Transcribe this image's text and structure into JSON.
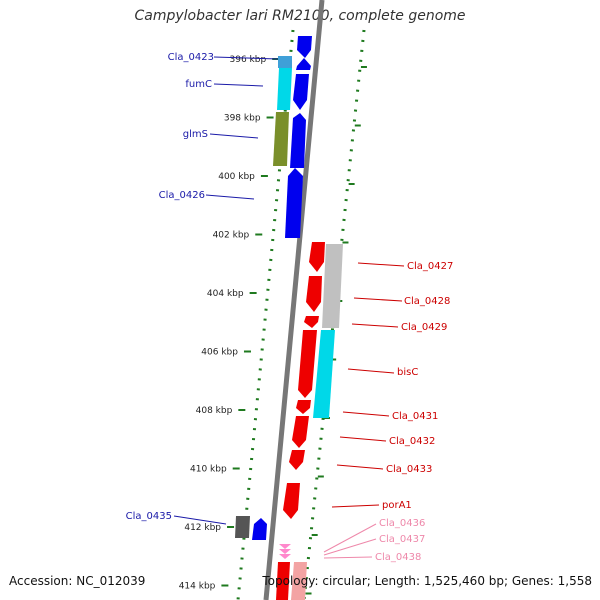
{
  "title": "Campylobacter lari RM2100, complete genome",
  "footer": {
    "accession": "Accession: NC_012039",
    "summary": "Topology: circular; Length: 1,525,460 bp; Genes: 1,558"
  },
  "colors": {
    "forward_gene": "#0000ee",
    "reverse_gene": "#ee0000",
    "forward_label": "#1a1aa8",
    "reverse_label": "#cc0000",
    "rna_label": "#ee88aa",
    "backbone": "#777777",
    "ticks": "#1f7a1f",
    "cds_cyan": "#00d8e8",
    "cds_olive": "#7a8f2a",
    "cds_gray": "#c0c0c0",
    "cds_darkgray": "#555555"
  },
  "scale": {
    "unit": "kbp",
    "ticks": [
      "396 kbp",
      "398 kbp",
      "400 kbp",
      "402 kbp",
      "404 kbp",
      "406 kbp",
      "408 kbp",
      "410 kbp",
      "412 kbp",
      "414 kbp"
    ]
  },
  "forward_genes": [
    {
      "name": "Cla_0423",
      "label": "Cla_0423"
    },
    {
      "name": "fumC",
      "label": "fumC"
    },
    {
      "name": "glmS",
      "label": "glmS"
    },
    {
      "name": "Cla_0426",
      "label": "Cla_0426"
    },
    {
      "name": "Cla_0435",
      "label": "Cla_0435"
    }
  ],
  "reverse_genes": [
    {
      "name": "Cla_0427",
      "label": "Cla_0427"
    },
    {
      "name": "Cla_0428",
      "label": "Cla_0428"
    },
    {
      "name": "Cla_0429",
      "label": "Cla_0429"
    },
    {
      "name": "bisC",
      "label": "bisC"
    },
    {
      "name": "Cla_0431",
      "label": "Cla_0431"
    },
    {
      "name": "Cla_0432",
      "label": "Cla_0432"
    },
    {
      "name": "Cla_0433",
      "label": "Cla_0433"
    },
    {
      "name": "porA1",
      "label": "porA1"
    }
  ],
  "rna_genes": [
    {
      "name": "Cla_0436",
      "label": "Cla_0436"
    },
    {
      "name": "Cla_0437",
      "label": "Cla_0437"
    },
    {
      "name": "Cla_0438",
      "label": "Cla_0438"
    }
  ]
}
